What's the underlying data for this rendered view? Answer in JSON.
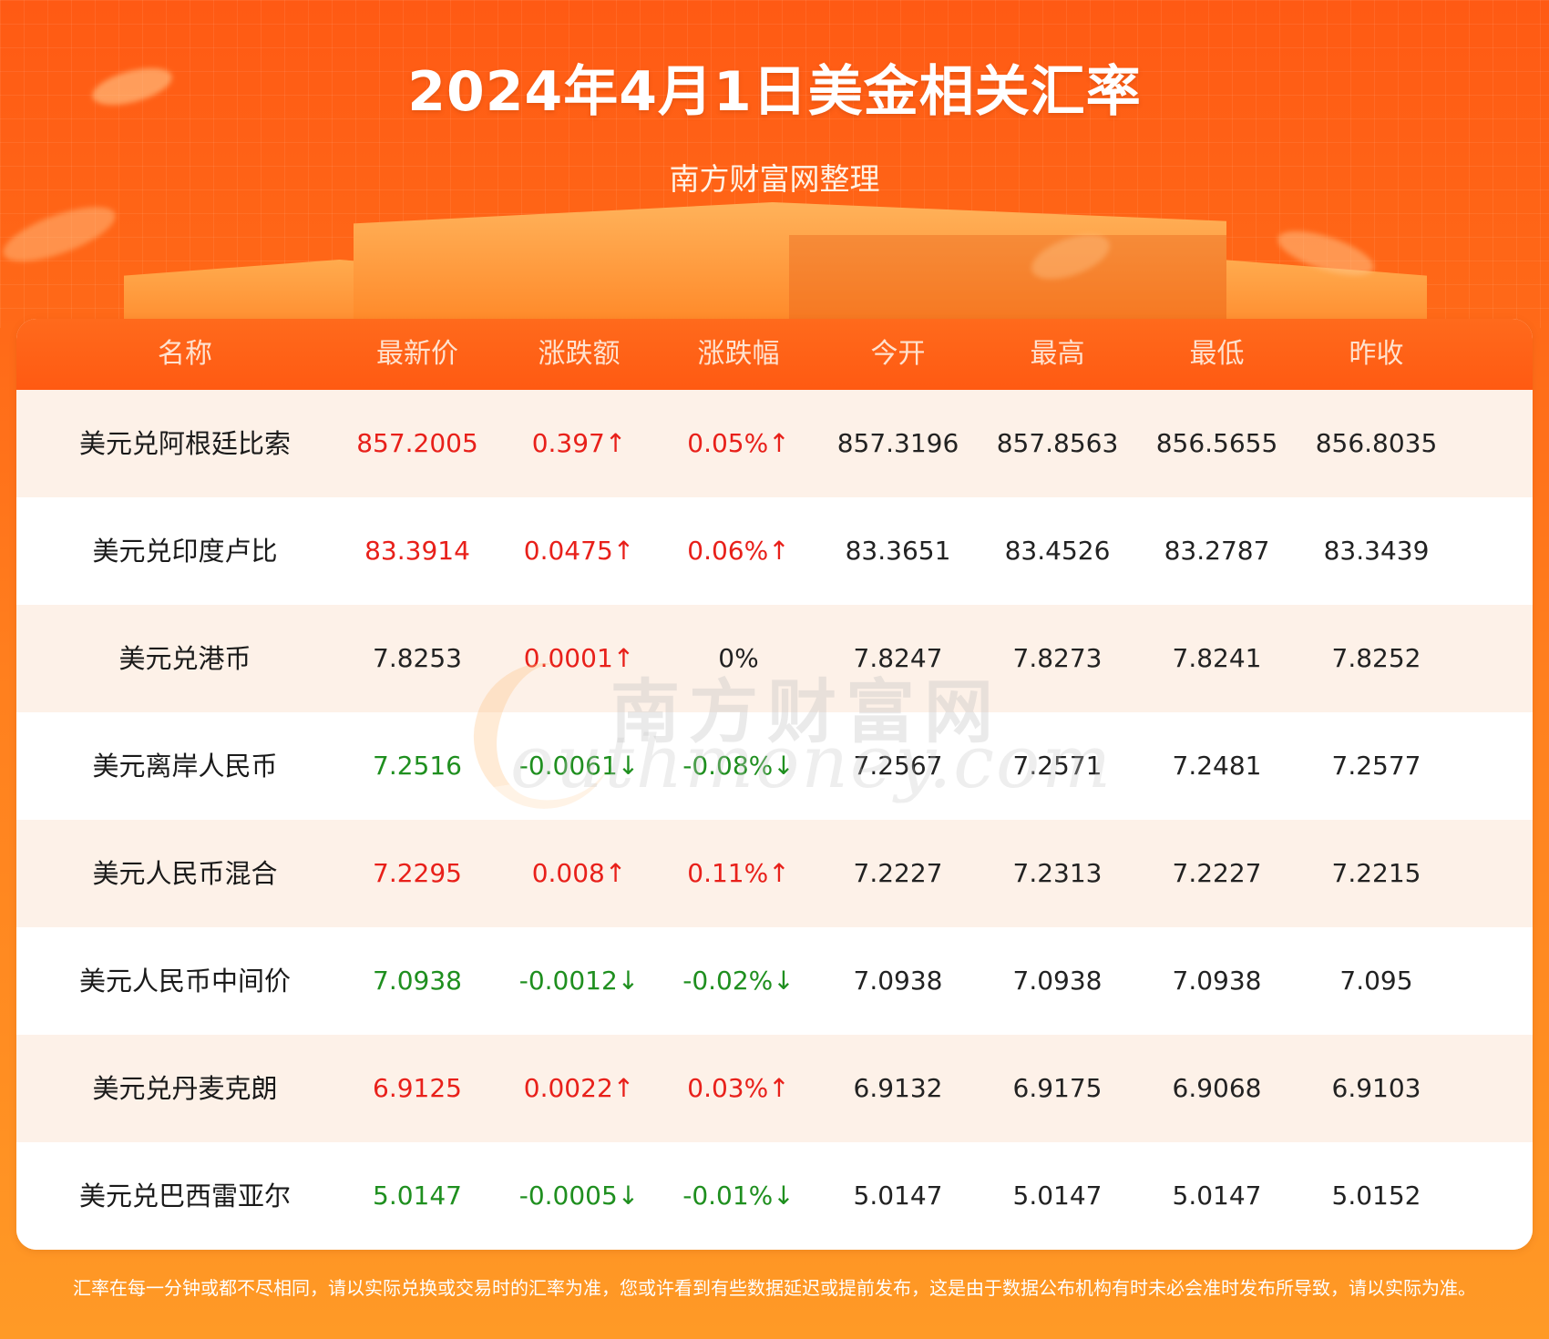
{
  "header": {
    "title": "2024年4月1日美金相关汇率",
    "subtitle": "南方财富网整理"
  },
  "table": {
    "columns": [
      "名称",
      "最新价",
      "涨跌额",
      "涨跌幅",
      "今开",
      "最高",
      "最低",
      "昨收"
    ],
    "rows": [
      {
        "name": "美元兑阿根廷比索",
        "latest": "857.2005",
        "change": "0.397↑",
        "pct": "0.05%↑",
        "open": "857.3196",
        "high": "857.8563",
        "low": "856.5655",
        "prev": "856.8035",
        "trend": "up"
      },
      {
        "name": "美元兑印度卢比",
        "latest": "83.3914",
        "change": "0.0475↑",
        "pct": "0.06%↑",
        "open": "83.3651",
        "high": "83.4526",
        "low": "83.2787",
        "prev": "83.3439",
        "trend": "up"
      },
      {
        "name": "美元兑港币",
        "latest": "7.8253",
        "change": "0.0001↑",
        "pct": "0%",
        "open": "7.8247",
        "high": "7.8273",
        "low": "7.8241",
        "prev": "7.8252",
        "trend": "mixed"
      },
      {
        "name": "美元离岸人民币",
        "latest": "7.2516",
        "change": "-0.0061↓",
        "pct": "-0.08%↓",
        "open": "7.2567",
        "high": "7.2571",
        "low": "7.2481",
        "prev": "7.2577",
        "trend": "down"
      },
      {
        "name": "美元人民币混合",
        "latest": "7.2295",
        "change": "0.008↑",
        "pct": "0.11%↑",
        "open": "7.2227",
        "high": "7.2313",
        "low": "7.2227",
        "prev": "7.2215",
        "trend": "up"
      },
      {
        "name": "美元人民币中间价",
        "latest": "7.0938",
        "change": "-0.0012↓",
        "pct": "-0.02%↓",
        "open": "7.0938",
        "high": "7.0938",
        "low": "7.0938",
        "prev": "7.095",
        "trend": "down"
      },
      {
        "name": "美元兑丹麦克朗",
        "latest": "6.9125",
        "change": "0.0022↑",
        "pct": "0.03%↑",
        "open": "6.9132",
        "high": "6.9175",
        "low": "6.9068",
        "prev": "6.9103",
        "trend": "up"
      },
      {
        "name": "美元兑巴西雷亚尔",
        "latest": "5.0147",
        "change": "-0.0005↓",
        "pct": "-0.01%↓",
        "open": "5.0147",
        "high": "5.0147",
        "low": "5.0147",
        "prev": "5.0152",
        "trend": "down"
      }
    ]
  },
  "watermark": {
    "cn": "南方财富网",
    "en": "outhmoney.com"
  },
  "footer": {
    "note": "汇率在每一分钟或都不尽相同，请以实际兑换或交易时的汇率为准，您或许看到有些数据延迟或提前发布，这是由于数据公布机构有时未必会准时发布所导致，请以实际为准。"
  },
  "colors": {
    "up": "#e8201a",
    "down": "#1f8f1f",
    "header_bg": "#ff5a12",
    "page_bg": "#ff6a18"
  }
}
